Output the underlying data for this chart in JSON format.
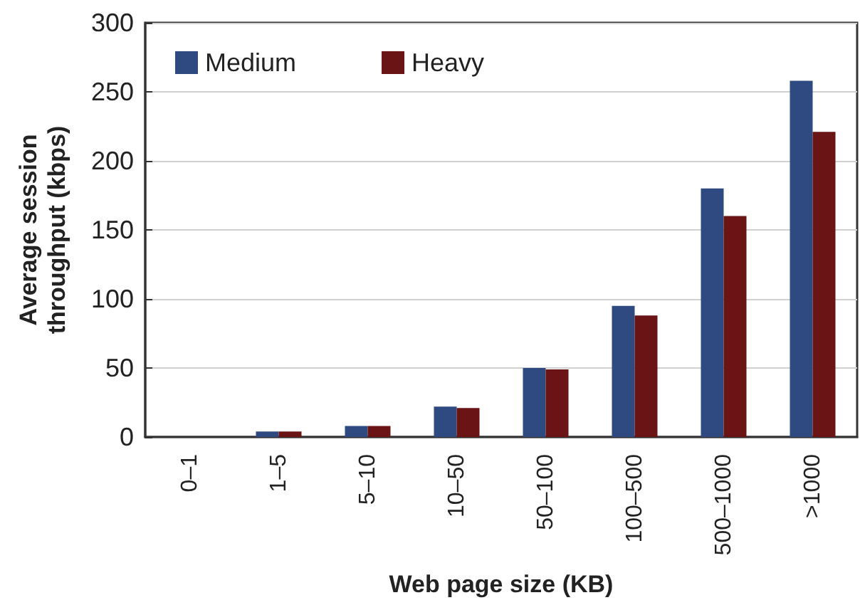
{
  "chart_data": {
    "type": "bar",
    "xlabel": "Web page size (KB)",
    "ylabel": "Average session\nthroughput (kbps)",
    "categories": [
      "0–1",
      "1–5",
      "5–10",
      "10–50",
      "50–100",
      "100–500",
      "500–1000",
      ">1000"
    ],
    "series": [
      {
        "name": "Medium",
        "color": "#2f4a80",
        "values": [
          0,
          4,
          8,
          22,
          50,
          95,
          180,
          258
        ]
      },
      {
        "name": "Heavy",
        "color": "#6b1416",
        "values": [
          0,
          4,
          8,
          21,
          49,
          88,
          160,
          221
        ]
      }
    ],
    "ylim": [
      0,
      300
    ],
    "yticks": [
      0,
      50,
      100,
      150,
      200,
      250,
      300
    ],
    "grid": "y",
    "legend": "top left"
  }
}
